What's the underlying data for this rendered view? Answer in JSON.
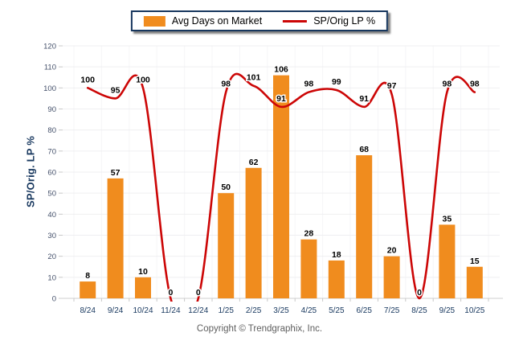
{
  "legend": {
    "items": [
      {
        "label": "Avg Days on Market",
        "swatch": "bar"
      },
      {
        "label": "SP/Orig LP %",
        "swatch": "line"
      }
    ]
  },
  "footer": {
    "copyright": "Copyright © Trendgraphix, Inc."
  },
  "colors": {
    "bar": "#F08C1E",
    "line": "#CC0606",
    "axis_text": "#17375E",
    "tick_text": "#44506A",
    "grid": "#EFEFF1",
    "vgrid": "#F5F5F7",
    "axis_line": "#CFCFCF",
    "tick_mark": "#C8C8C8",
    "data_label": "#000000"
  },
  "chart_data": {
    "type": "bar",
    "title": "",
    "xlabel": "",
    "ylabel": "SP/Orig. LP %",
    "categories": [
      "8/24",
      "9/24",
      "10/24",
      "11/24",
      "12/24",
      "1/25",
      "2/25",
      "3/25",
      "4/25",
      "5/25",
      "6/25",
      "7/25",
      "8/25",
      "9/25",
      "10/25"
    ],
    "series": [
      {
        "name": "Avg Days on Market",
        "type": "bar",
        "values": [
          8,
          57,
          10,
          0,
          0,
          50,
          62,
          106,
          28,
          18,
          68,
          20,
          0,
          35,
          15
        ]
      },
      {
        "name": "SP/Orig LP %",
        "type": "line",
        "values": [
          100,
          95,
          100,
          0,
          0,
          98,
          101,
          91,
          98,
          99,
          91,
          97,
          0,
          98,
          98
        ]
      }
    ],
    "ylim": [
      0,
      120
    ],
    "ytick_step": 10,
    "grid": true,
    "legend_position": "top-center",
    "line_style": "smooth"
  }
}
